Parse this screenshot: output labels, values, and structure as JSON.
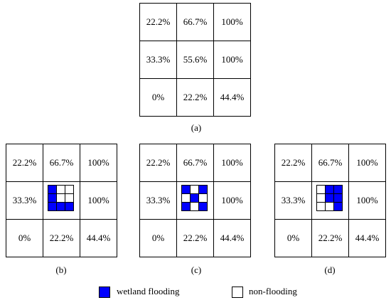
{
  "colors": {
    "wet": "#0000ff",
    "dry": "#ffffff",
    "line": "#000000"
  },
  "grid_values": [
    "22.2%",
    "66.7%",
    "100%",
    "33.3%",
    "55.6%",
    "100%",
    "0%",
    "22.2%",
    "44.4%"
  ],
  "panels": [
    {
      "caption": "(a)",
      "center_value": "55.6%",
      "center_pattern": null
    },
    {
      "caption": "(b)",
      "center_value": "",
      "center_pattern": [
        1,
        0,
        0,
        1,
        0,
        0,
        1,
        1,
        1
      ]
    },
    {
      "caption": "(c)",
      "center_value": "",
      "center_pattern": [
        1,
        0,
        1,
        0,
        1,
        0,
        1,
        0,
        1
      ]
    },
    {
      "caption": "(d)",
      "center_value": "",
      "center_pattern": [
        0,
        1,
        1,
        0,
        1,
        1,
        0,
        0,
        1
      ]
    }
  ],
  "legend": {
    "wet_label": "wetland flooding",
    "dry_label": "non-flooding"
  }
}
